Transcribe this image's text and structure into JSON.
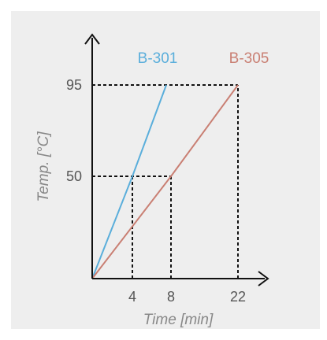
{
  "chart_data": {
    "type": "line",
    "xlabel": "Time [min]",
    "ylabel": "Temp. [°C]",
    "x_ticks": [
      4,
      8,
      22
    ],
    "y_ticks": [
      50,
      95
    ],
    "series": [
      {
        "name": "B-301",
        "color": "#5aaedb",
        "points": [
          [
            0,
            0
          ],
          [
            4,
            50
          ],
          [
            7.5,
            95
          ]
        ]
      },
      {
        "name": "B-305",
        "color": "#c97f73",
        "points": [
          [
            0,
            0
          ],
          [
            8,
            50
          ],
          [
            22,
            95
          ]
        ]
      }
    ],
    "reference_lines": [
      {
        "x": 4,
        "y": 50
      },
      {
        "x": 8,
        "y": 50
      },
      {
        "x": 22,
        "y": 95
      }
    ],
    "grid": false,
    "legend": "series names at line ends"
  }
}
